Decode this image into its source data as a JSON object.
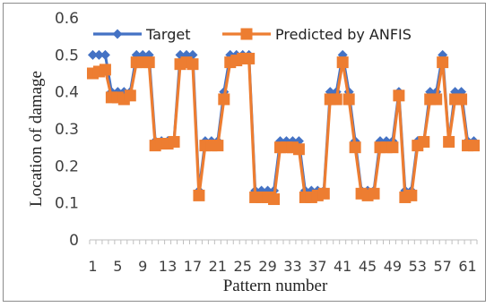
{
  "chart_data": {
    "type": "line",
    "title": "",
    "xlabel": "Pattern number",
    "ylabel": "Location of damage",
    "ylim": [
      0,
      0.6
    ],
    "yticks": [
      "0",
      "0.1",
      "0.2",
      "0.3",
      "0.4",
      "0.5",
      "0.6"
    ],
    "xticks": [
      "1",
      "5",
      "9",
      "13",
      "17",
      "21",
      "25",
      "29",
      "33",
      "37",
      "41",
      "45",
      "49",
      "53",
      "57",
      "61"
    ],
    "x": [
      1,
      2,
      3,
      4,
      5,
      6,
      7,
      8,
      9,
      10,
      11,
      12,
      13,
      14,
      15,
      16,
      17,
      18,
      19,
      20,
      21,
      22,
      23,
      24,
      25,
      26,
      27,
      28,
      29,
      30,
      31,
      32,
      33,
      34,
      35,
      36,
      37,
      38,
      39,
      40,
      41,
      42,
      43,
      44,
      45,
      46,
      47,
      48,
      49,
      50,
      51,
      52,
      53,
      54,
      55,
      56,
      57,
      58,
      59,
      60,
      61,
      62
    ],
    "legend_position": "top",
    "grid": false,
    "series": [
      {
        "name": "Target",
        "color": "#4472C4",
        "marker": "diamond",
        "values": [
          0.5,
          0.5,
          0.5,
          0.4,
          0.4,
          0.4,
          0.4,
          0.5,
          0.5,
          0.5,
          0.267,
          0.267,
          0.267,
          0.267,
          0.5,
          0.5,
          0.5,
          0.133,
          0.267,
          0.267,
          0.267,
          0.4,
          0.5,
          0.5,
          0.5,
          0.5,
          0.133,
          0.133,
          0.133,
          0.133,
          0.267,
          0.267,
          0.267,
          0.267,
          0.133,
          0.133,
          0.133,
          0.133,
          0.4,
          0.4,
          0.5,
          0.4,
          0.267,
          0.133,
          0.133,
          0.133,
          0.267,
          0.267,
          0.267,
          0.4,
          0.133,
          0.133,
          0.267,
          0.267,
          0.4,
          0.4,
          0.5,
          0.267,
          0.4,
          0.4,
          0.267,
          0.267
        ]
      },
      {
        "name": "Predicted by ANFIS",
        "color": "#ED7D31",
        "marker": "square",
        "values": [
          0.45,
          0.455,
          0.46,
          0.385,
          0.385,
          0.38,
          0.39,
          0.48,
          0.48,
          0.48,
          0.255,
          0.26,
          0.26,
          0.265,
          0.475,
          0.48,
          0.475,
          0.12,
          0.255,
          0.255,
          0.255,
          0.38,
          0.48,
          0.485,
          0.49,
          0.49,
          0.115,
          0.115,
          0.115,
          0.11,
          0.25,
          0.25,
          0.25,
          0.245,
          0.115,
          0.115,
          0.12,
          0.125,
          0.38,
          0.38,
          0.48,
          0.38,
          0.25,
          0.125,
          0.12,
          0.125,
          0.25,
          0.25,
          0.25,
          0.39,
          0.115,
          0.12,
          0.255,
          0.265,
          0.38,
          0.38,
          0.48,
          0.265,
          0.38,
          0.38,
          0.255,
          0.255
        ]
      }
    ]
  }
}
